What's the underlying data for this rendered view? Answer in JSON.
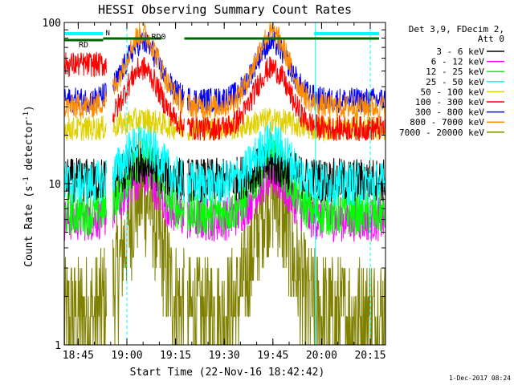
{
  "chart_data": {
    "type": "line",
    "title": "HESSI Observing Summary Count Rates",
    "xlabel": "Start Time (22-Nov-16 18:42:42)",
    "ylabel_main": "Count Rate (s",
    "ylabel_sup1": "-1",
    "ylabel_mid": " detector",
    "ylabel_sup2": "-1",
    "ylabel_end": ")",
    "y_scale": "log",
    "ylim": [
      1,
      100
    ],
    "xlim_minutes": [
      -2,
      97
    ],
    "x_ticks": [
      "18:45",
      "19:00",
      "19:15",
      "19:30",
      "19:45",
      "20:00",
      "20:15"
    ],
    "y_ticks": [
      "1",
      "10",
      "100"
    ],
    "legend_header": [
      "Det 3,9, FDecim 2,",
      "Att 0"
    ],
    "series": [
      {
        "name": "3 - 6 keV",
        "color": "#000000"
      },
      {
        "name": "6 - 12 keV",
        "color": "#ff00ff"
      },
      {
        "name": "12 - 25 keV",
        "color": "#00ff00"
      },
      {
        "name": "25 - 50 keV",
        "color": "#00ffff"
      },
      {
        "name": "50 - 100 keV",
        "color": "#e0d000"
      },
      {
        "name": "100 - 300 keV",
        "color": "#ff0000"
      },
      {
        "name": "300 - 800 keV",
        "color": "#0000ff"
      },
      {
        "name": "800 - 7000 keV",
        "color": "#ff8c00"
      },
      {
        "name": "7000 - 20000 keV",
        "color": "#808000"
      }
    ],
    "series_levels": {
      "orbit_segments_minutes": [
        [
          -2,
          11
        ],
        [
          13,
          35
        ],
        [
          36,
          74
        ],
        [
          74,
          97
        ]
      ],
      "note_levels": [
        {
          "series": "3 - 6 keV",
          "base": 10.5,
          "peak": 13
        },
        {
          "series": "6 - 12 keV",
          "base": 6,
          "peak": 11
        },
        {
          "series": "12 - 25 keV",
          "base": 6.5,
          "peak": 14
        },
        {
          "series": "25 - 50 keV",
          "base": 10,
          "peak": 18
        },
        {
          "series": "50 - 100 keV",
          "base": 22,
          "peak": 25
        },
        {
          "series": "100 - 300 keV",
          "base": 22,
          "peak": 52
        },
        {
          "series": "300 - 800 keV",
          "base": 33,
          "peak": 75
        },
        {
          "series": "800 - 7000 keV",
          "base": 30,
          "peak": 85
        },
        {
          "series": "7000 - 20000 keV",
          "base": 1.5,
          "peak": 9
        }
      ]
    },
    "annotations": [
      {
        "text": "RD",
        "color": "#006400"
      },
      {
        "text": "RD0",
        "color": "#006400"
      },
      {
        "text": "N",
        "color": "#00ffff"
      }
    ],
    "markers": [
      {
        "type": "dashed-vline",
        "minute": 17.3,
        "color": "#00ffff"
      },
      {
        "type": "solid-vline",
        "minute": 75.4,
        "color": "#00ffff"
      },
      {
        "type": "dashed-vline",
        "minute": 92.3,
        "color": "#00ffff"
      }
    ],
    "flag_bars": [
      {
        "color": "#00ffff",
        "label": "N",
        "from": -2,
        "to": 10
      },
      {
        "color": "#00ffff",
        "label": "",
        "from": 75,
        "to": 95
      },
      {
        "color": "#006400",
        "label": "RD",
        "from": -2,
        "to": 10
      },
      {
        "color": "#006400",
        "label": "RD0",
        "from": 10,
        "to": 28
      },
      {
        "color": "#006400",
        "label": "",
        "from": 35,
        "to": 95
      }
    ],
    "footer": "1-Dec-2017 08:24"
  }
}
